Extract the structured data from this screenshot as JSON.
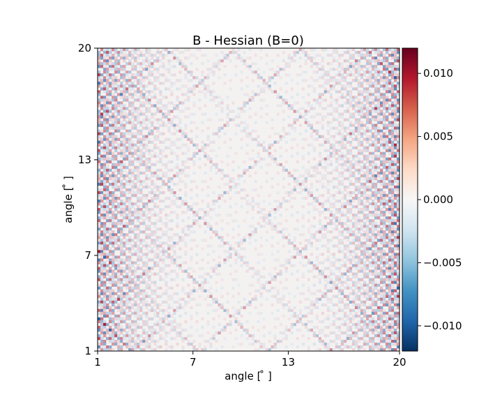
{
  "chart_data": {
    "type": "heatmap",
    "title": "B - Hessian (B=0)",
    "xlabel": "angle [$^\\circ$]",
    "ylabel": "angle [$^\\circ$]",
    "xlabel_display": "angle [ ̊ ]",
    "ylabel_display": "angle [ ̊ ]",
    "x_range": [
      1,
      20
    ],
    "y_range": [
      1,
      20
    ],
    "x_ticks": [
      "1",
      "7",
      "13",
      "20"
    ],
    "x_tick_values": [
      1,
      7,
      13,
      20
    ],
    "y_ticks": [
      "1",
      "7",
      "13",
      "20"
    ],
    "y_tick_values": [
      1,
      7,
      13,
      20
    ],
    "colorbar": {
      "cmap": "RdBu_r",
      "range": [
        -0.012,
        0.012
      ],
      "ticks": [
        {
          "value": 0.01,
          "label": "0.010"
        },
        {
          "value": 0.005,
          "label": "0.005"
        },
        {
          "value": 0.0,
          "label": "0.000"
        },
        {
          "value": -0.005,
          "label": "−0.005"
        },
        {
          "value": -0.01,
          "label": "−0.010"
        }
      ],
      "colors": {
        "max": "#67001f",
        "high": "#d6604d",
        "mid": "#f7f7f7",
        "low": "#4393c3",
        "min": "#053061"
      }
    },
    "pattern": "symmetric oscillatory; mostly near-zero (white) with fine red/blue fringes concentrated near left and right edges and along diagonal bands"
  }
}
